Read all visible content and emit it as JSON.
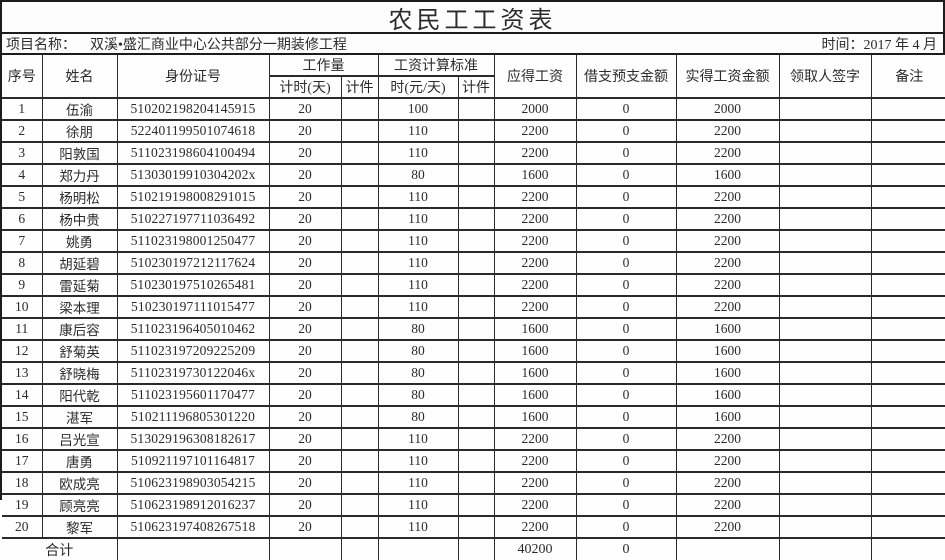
{
  "title": "农民工工资表",
  "meta": {
    "project_label": "项目名称：",
    "project_name": "双溪•盛汇商业中心公共部分一期装修工程",
    "time_label": "时间：",
    "time_value": "2017 年 4 月"
  },
  "table": {
    "headers": {
      "no": "序号",
      "name": "姓名",
      "id": "身份证号",
      "workload_group": "工作量",
      "workload_time": "计时(天)",
      "workload_piece": "计件",
      "standard_group": "工资计算标准",
      "standard_time": "时(元/天)",
      "standard_piece": "计件",
      "due": "应得工资",
      "advance": "借支预支金额",
      "actual": "实得工资金额",
      "signature": "领取人签字",
      "note": "备注"
    },
    "rows": [
      {
        "no": "1",
        "name": "伍渝",
        "id": "510202198204145915",
        "days": "20",
        "piece": "",
        "rate": "100",
        "piece_rate": "",
        "due": "2000",
        "advance": "0",
        "actual": "2000",
        "signature": "",
        "note": ""
      },
      {
        "no": "2",
        "name": "徐朋",
        "id": "522401199501074618",
        "days": "20",
        "piece": "",
        "rate": "110",
        "piece_rate": "",
        "due": "2200",
        "advance": "0",
        "actual": "2200",
        "signature": "",
        "note": ""
      },
      {
        "no": "3",
        "name": "阳敦国",
        "id": "511023198604100494",
        "days": "20",
        "piece": "",
        "rate": "110",
        "piece_rate": "",
        "due": "2200",
        "advance": "0",
        "actual": "2200",
        "signature": "",
        "note": ""
      },
      {
        "no": "4",
        "name": "郑力丹",
        "id": "51303019910304202x",
        "days": "20",
        "piece": "",
        "rate": "80",
        "piece_rate": "",
        "due": "1600",
        "advance": "0",
        "actual": "1600",
        "signature": "",
        "note": ""
      },
      {
        "no": "5",
        "name": "杨明松",
        "id": "510219198008291015",
        "days": "20",
        "piece": "",
        "rate": "110",
        "piece_rate": "",
        "due": "2200",
        "advance": "0",
        "actual": "2200",
        "signature": "",
        "note": ""
      },
      {
        "no": "6",
        "name": "杨中贵",
        "id": "510227197711036492",
        "days": "20",
        "piece": "",
        "rate": "110",
        "piece_rate": "",
        "due": "2200",
        "advance": "0",
        "actual": "2200",
        "signature": "",
        "note": ""
      },
      {
        "no": "7",
        "name": "姚勇",
        "id": "511023198001250477",
        "days": "20",
        "piece": "",
        "rate": "110",
        "piece_rate": "",
        "due": "2200",
        "advance": "0",
        "actual": "2200",
        "signature": "",
        "note": ""
      },
      {
        "no": "8",
        "name": "胡延碧",
        "id": "510230197212117624",
        "days": "20",
        "piece": "",
        "rate": "110",
        "piece_rate": "",
        "due": "2200",
        "advance": "0",
        "actual": "2200",
        "signature": "",
        "note": ""
      },
      {
        "no": "9",
        "name": "雷延菊",
        "id": "510230197510265481",
        "days": "20",
        "piece": "",
        "rate": "110",
        "piece_rate": "",
        "due": "2200",
        "advance": "0",
        "actual": "2200",
        "signature": "",
        "note": ""
      },
      {
        "no": "10",
        "name": "梁本理",
        "id": "510230197111015477",
        "days": "20",
        "piece": "",
        "rate": "110",
        "piece_rate": "",
        "due": "2200",
        "advance": "0",
        "actual": "2200",
        "signature": "",
        "note": ""
      },
      {
        "no": "11",
        "name": "康后容",
        "id": "511023196405010462",
        "days": "20",
        "piece": "",
        "rate": "80",
        "piece_rate": "",
        "due": "1600",
        "advance": "0",
        "actual": "1600",
        "signature": "",
        "note": ""
      },
      {
        "no": "12",
        "name": "舒菊英",
        "id": "511023197209225209",
        "days": "20",
        "piece": "",
        "rate": "80",
        "piece_rate": "",
        "due": "1600",
        "advance": "0",
        "actual": "1600",
        "signature": "",
        "note": ""
      },
      {
        "no": "13",
        "name": "舒晓梅",
        "id": "51102319730122046x",
        "days": "20",
        "piece": "",
        "rate": "80",
        "piece_rate": "",
        "due": "1600",
        "advance": "0",
        "actual": "1600",
        "signature": "",
        "note": ""
      },
      {
        "no": "14",
        "name": "阳代乾",
        "id": "511023195601170477",
        "days": "20",
        "piece": "",
        "rate": "80",
        "piece_rate": "",
        "due": "1600",
        "advance": "0",
        "actual": "1600",
        "signature": "",
        "note": ""
      },
      {
        "no": "15",
        "name": "湛军",
        "id": "510211196805301220",
        "days": "20",
        "piece": "",
        "rate": "80",
        "piece_rate": "",
        "due": "1600",
        "advance": "0",
        "actual": "1600",
        "signature": "",
        "note": ""
      },
      {
        "no": "16",
        "name": "吕光宣",
        "id": "513029196308182617",
        "days": "20",
        "piece": "",
        "rate": "110",
        "piece_rate": "",
        "due": "2200",
        "advance": "0",
        "actual": "2200",
        "signature": "",
        "note": ""
      },
      {
        "no": "17",
        "name": "唐勇",
        "id": "510921197101164817",
        "days": "20",
        "piece": "",
        "rate": "110",
        "piece_rate": "",
        "due": "2200",
        "advance": "0",
        "actual": "2200",
        "signature": "",
        "note": ""
      },
      {
        "no": "18",
        "name": "欧成亮",
        "id": "510623198903054215",
        "days": "20",
        "piece": "",
        "rate": "110",
        "piece_rate": "",
        "due": "2200",
        "advance": "0",
        "actual": "2200",
        "signature": "",
        "note": ""
      },
      {
        "no": "19",
        "name": "顾亮亮",
        "id": "510623198912016237",
        "days": "20",
        "piece": "",
        "rate": "110",
        "piece_rate": "",
        "due": "2200",
        "advance": "0",
        "actual": "2200",
        "signature": "",
        "note": ""
      },
      {
        "no": "20",
        "name": "黎军",
        "id": "510623197408267518",
        "days": "20",
        "piece": "",
        "rate": "110",
        "piece_rate": "",
        "due": "2200",
        "advance": "0",
        "actual": "2200",
        "signature": "",
        "note": ""
      }
    ],
    "total": {
      "label": "合计",
      "due": "40200",
      "advance": "0",
      "actual": "",
      "signature": "",
      "note": ""
    }
  }
}
